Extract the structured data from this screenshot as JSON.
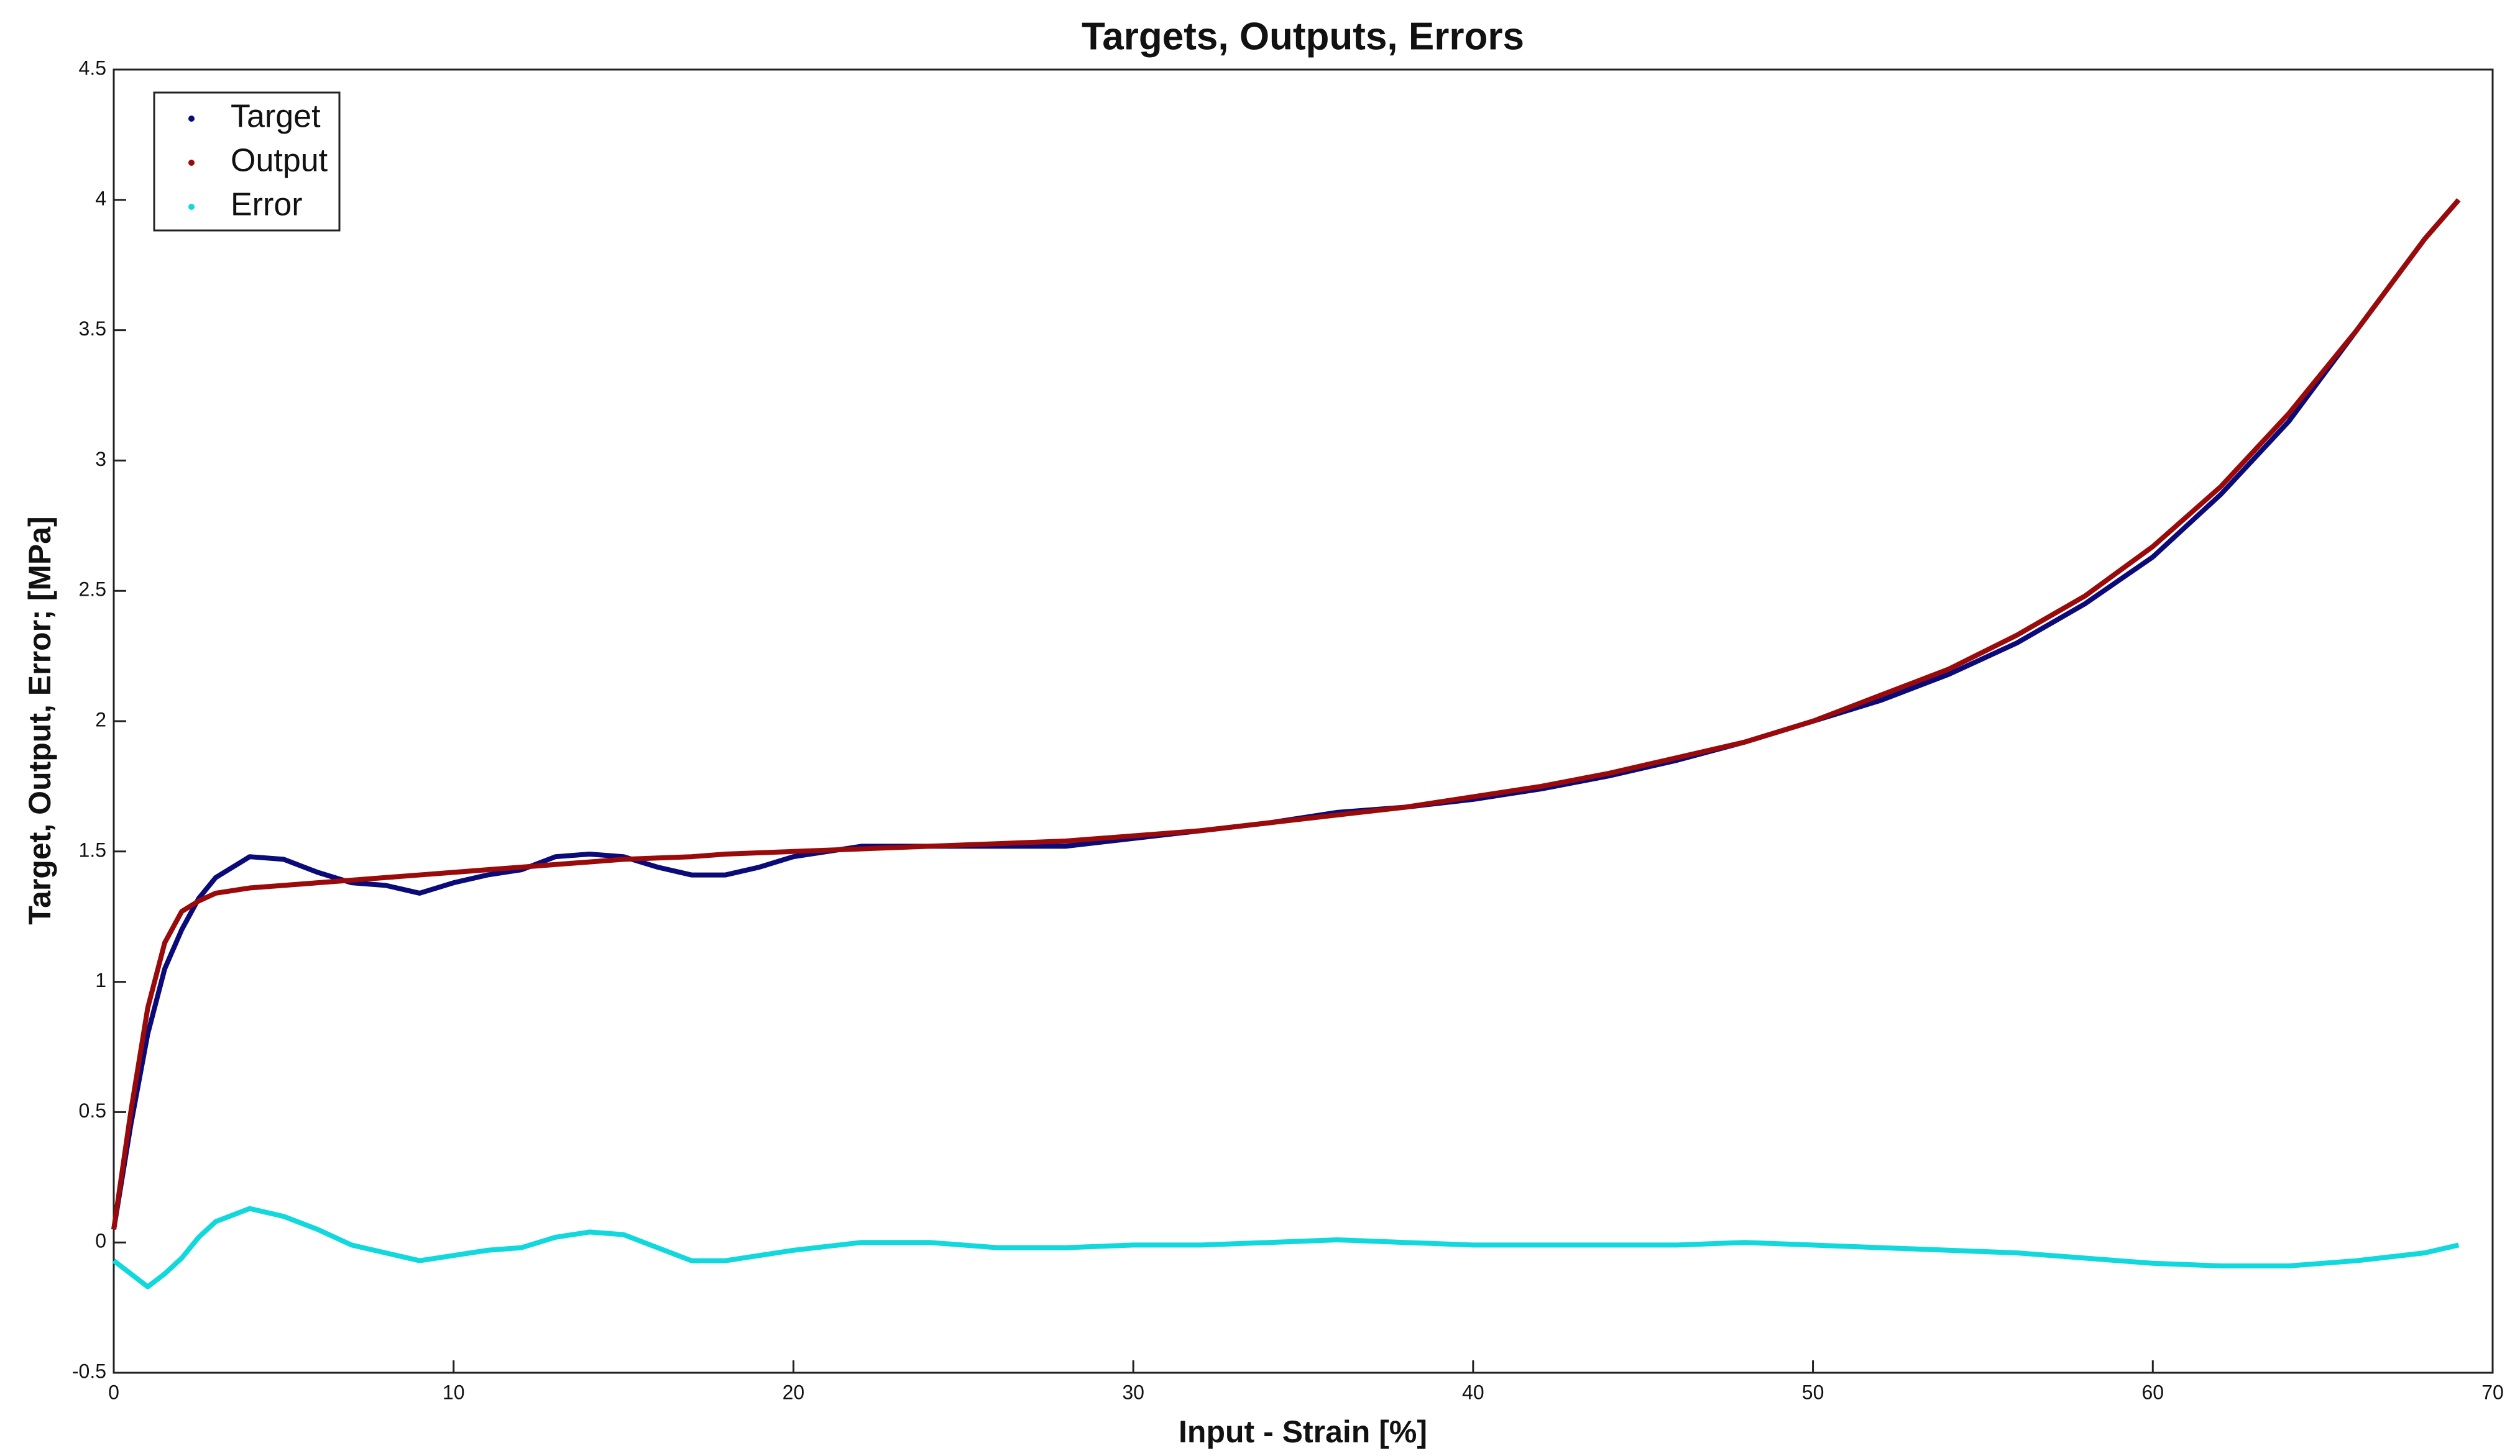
{
  "chart_data": {
    "type": "line",
    "title": "Targets, Outputs, Errors",
    "x_label": "Input - Strain [%]",
    "y_label": "Target, Output, Error; [MPa]",
    "x": [
      0,
      0.5,
      1,
      1.5,
      2,
      2.5,
      3,
      4,
      5,
      6,
      7,
      8,
      9,
      10,
      11,
      12,
      13,
      14,
      15,
      16,
      17,
      18,
      19,
      20,
      22,
      24,
      26,
      28,
      30,
      32,
      34,
      36,
      38,
      40,
      42,
      44,
      46,
      48,
      50,
      52,
      54,
      56,
      58,
      60,
      62,
      64,
      66,
      68,
      69
    ],
    "series": [
      {
        "name": "Target",
        "color": "#0a0a78",
        "values": [
          0.05,
          0.45,
          0.8,
          1.05,
          1.2,
          1.32,
          1.4,
          1.48,
          1.47,
          1.42,
          1.38,
          1.37,
          1.34,
          1.38,
          1.41,
          1.43,
          1.48,
          1.49,
          1.48,
          1.44,
          1.41,
          1.41,
          1.44,
          1.48,
          1.52,
          1.52,
          1.52,
          1.52,
          1.55,
          1.58,
          1.61,
          1.65,
          1.67,
          1.7,
          1.74,
          1.79,
          1.85,
          1.92,
          2.0,
          2.08,
          2.18,
          2.3,
          2.45,
          2.63,
          2.87,
          3.15,
          3.5,
          3.85,
          4.0
        ]
      },
      {
        "name": "Output",
        "color": "#9a0a0a",
        "values": [
          0.05,
          0.5,
          0.9,
          1.15,
          1.27,
          1.31,
          1.34,
          1.36,
          1.37,
          1.38,
          1.39,
          1.4,
          1.41,
          1.42,
          1.43,
          1.44,
          1.45,
          1.46,
          1.47,
          1.475,
          1.48,
          1.49,
          1.495,
          1.5,
          1.51,
          1.52,
          1.53,
          1.54,
          1.56,
          1.58,
          1.61,
          1.64,
          1.67,
          1.71,
          1.75,
          1.8,
          1.86,
          1.92,
          2.0,
          2.1,
          2.2,
          2.33,
          2.48,
          2.67,
          2.9,
          3.18,
          3.5,
          3.85,
          4.0
        ]
      },
      {
        "name": "Error",
        "color": "#10d8dc",
        "values": [
          -0.07,
          -0.12,
          -0.17,
          -0.12,
          -0.06,
          0.02,
          0.08,
          0.13,
          0.1,
          0.05,
          -0.01,
          -0.04,
          -0.07,
          -0.05,
          -0.03,
          -0.02,
          0.02,
          0.04,
          0.03,
          -0.02,
          -0.07,
          -0.07,
          -0.05,
          -0.03,
          0.0,
          0.0,
          -0.02,
          -0.02,
          -0.01,
          -0.01,
          0.0,
          0.01,
          0.0,
          -0.01,
          -0.01,
          -0.01,
          -0.01,
          0.0,
          -0.01,
          -0.02,
          -0.03,
          -0.04,
          -0.06,
          -0.08,
          -0.09,
          -0.09,
          -0.07,
          -0.04,
          -0.01
        ]
      }
    ],
    "xlim": [
      0,
      70
    ],
    "xticks": [
      0,
      10,
      20,
      30,
      40,
      50,
      60,
      70
    ],
    "ylim": [
      -0.5,
      4.5
    ],
    "yticks": [
      -0.5,
      0,
      0.5,
      1,
      1.5,
      2,
      2.5,
      3,
      3.5,
      4,
      4.5
    ],
    "grid": false,
    "legend": "upper left"
  }
}
